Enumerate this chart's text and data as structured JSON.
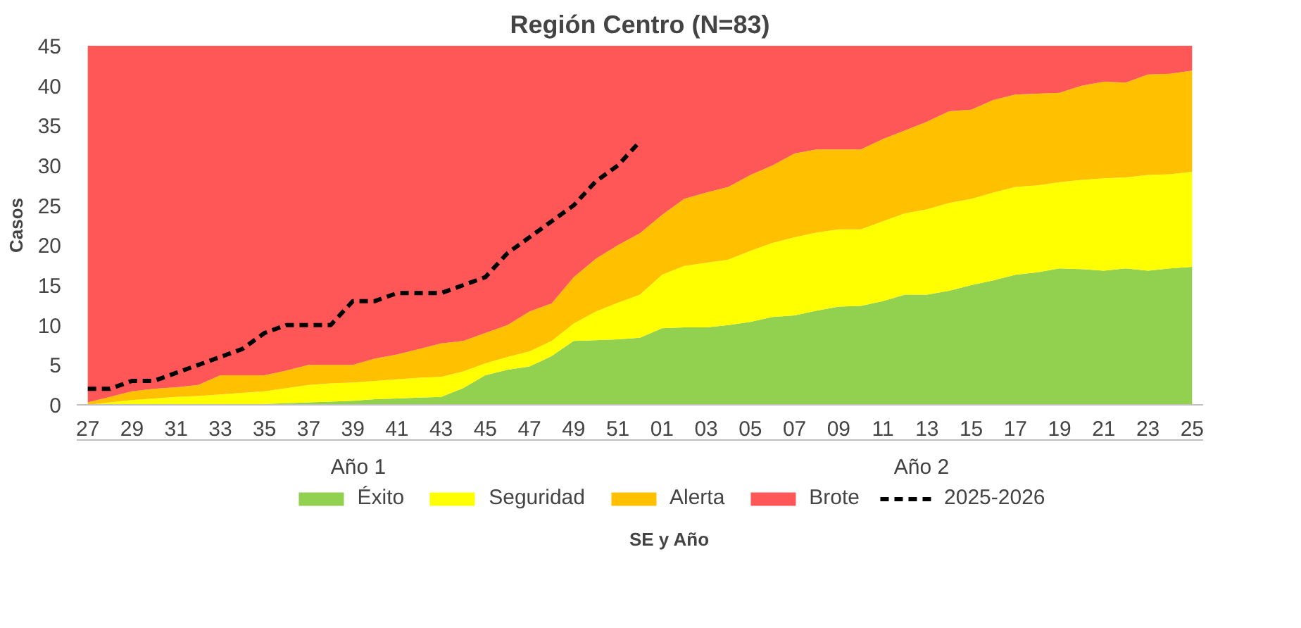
{
  "chart_data": {
    "type": "area",
    "stacked": true,
    "title": "Región Centro (N=83)",
    "xlabel": "SE y Año",
    "ylabel": "Casos",
    "categories": [
      "27",
      null,
      "29",
      null,
      "31",
      null,
      "33",
      null,
      "35",
      null,
      "37",
      null,
      "39",
      null,
      "41",
      null,
      "43",
      null,
      "45",
      null,
      "47",
      null,
      "49",
      null,
      "51",
      null,
      "01",
      null,
      "03",
      null,
      "05",
      null,
      "07",
      null,
      "09",
      null,
      "11",
      null,
      "13",
      null,
      "15",
      null,
      "17",
      null,
      "19",
      null,
      "21",
      null,
      "23",
      null,
      "25"
    ],
    "ylim": [
      0,
      45
    ],
    "yticks": [
      0,
      5,
      10,
      15,
      20,
      25,
      30,
      35,
      40,
      45
    ],
    "grid": false,
    "legend": "bottom",
    "annotations": [
      "Año 1",
      "Año 2"
    ],
    "series": [
      {
        "name": "Éxito",
        "color": "#92d050",
        "values": [
          0,
          0,
          0,
          0,
          0,
          0,
          0,
          0,
          0.1,
          0.2,
          0.3,
          0.4,
          0.5,
          0.7,
          0.8,
          0.9,
          1.0,
          2.1,
          3.7,
          4.4,
          4.8,
          6.1,
          8.0,
          8.1,
          8.2,
          8.4,
          9.6,
          9.7,
          9.7,
          10,
          10.4,
          11,
          11.2,
          11.8,
          12.3,
          12.4,
          13,
          13.8,
          13.8,
          14.3,
          15,
          15.6,
          16.3,
          16.6,
          17.1,
          17,
          16.8,
          17.1,
          16.8,
          17.1,
          17.3
        ]
      },
      {
        "name": "Seguridad",
        "color": "#ffff00",
        "values": [
          0,
          0.3,
          0.6,
          0.8,
          1.0,
          1.1,
          1.3,
          1.5,
          1.6,
          1.9,
          2.2,
          2.3,
          2.3,
          2.3,
          2.4,
          2.5,
          2.5,
          2.1,
          1.5,
          1.6,
          1.9,
          1.9,
          2.2,
          3.6,
          4.6,
          5.4,
          6.7,
          7.7,
          8.1,
          8.2,
          8.9,
          9.3,
          9.8,
          9.8,
          9.7,
          9.6,
          10,
          10.2,
          10.7,
          11,
          10.8,
          11,
          11,
          10.9,
          10.8,
          11.2,
          11.6,
          11.4,
          12,
          11.8,
          11.9
        ]
      },
      {
        "name": "Alerta",
        "color": "#ffc000",
        "values": [
          0.3,
          0.7,
          1.1,
          1.2,
          1.2,
          1.4,
          2.4,
          2.2,
          2.0,
          2.2,
          2.5,
          2.3,
          2.2,
          2.8,
          3.1,
          3.6,
          4.2,
          3.8,
          3.8,
          4.0,
          5.0,
          4.7,
          5.8,
          6.6,
          7.2,
          7.7,
          7.5,
          8.4,
          8.8,
          9.1,
          9.5,
          9.7,
          10.5,
          10.4,
          10,
          10,
          10.3,
          10.4,
          11,
          11.5,
          11.2,
          11.6,
          11.6,
          11.5,
          11.2,
          11.8,
          12.1,
          11.9,
          12.6,
          12.6,
          12.7
        ]
      },
      {
        "name": "Brote",
        "color": "#ff5757",
        "values": [
          44.7,
          44,
          43.3,
          43,
          42.8,
          42.5,
          41.3,
          41.3,
          41.3,
          40.7,
          40,
          40,
          40,
          39.2,
          38.7,
          38,
          37.3,
          37,
          36,
          35,
          33.3,
          32.3,
          29,
          26.7,
          25,
          23.5,
          21.2,
          19.2,
          18.4,
          17.7,
          16.2,
          15,
          13.5,
          13,
          13,
          13,
          11.7,
          10.6,
          9.5,
          8.2,
          8,
          6.8,
          6.1,
          6,
          5.9,
          5,
          4.5,
          4.6,
          3.6,
          3.5,
          3.1
        ]
      },
      {
        "name": "2025-2026",
        "type": "line",
        "color": "#000000",
        "line_style": "dashed",
        "values": [
          2,
          2,
          3,
          3,
          4,
          5,
          6,
          7,
          9,
          10,
          10,
          10,
          13,
          13,
          14,
          14,
          14,
          15,
          16,
          19,
          21,
          23,
          25,
          28,
          30,
          33,
          null,
          null,
          null,
          null,
          null,
          null,
          null,
          null,
          null,
          null,
          null,
          null,
          null,
          null,
          null,
          null,
          null,
          null,
          null,
          null,
          null,
          null,
          null,
          null,
          null
        ]
      }
    ]
  }
}
